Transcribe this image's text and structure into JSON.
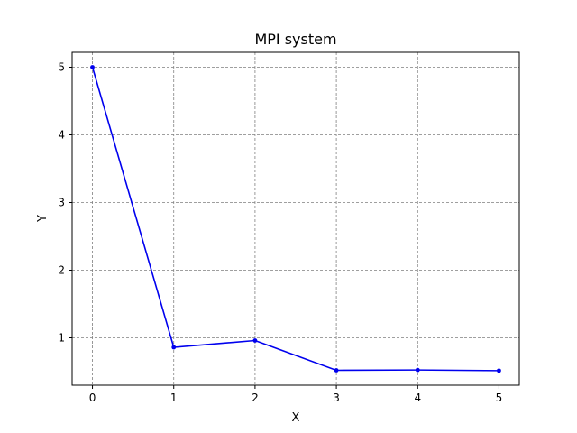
{
  "chart_data": {
    "type": "line",
    "title": "MPI system",
    "xlabel": "X",
    "ylabel": "Y",
    "x": [
      0,
      1,
      2,
      3,
      4,
      5
    ],
    "series": [
      {
        "values": [
          5.0,
          0.86,
          0.96,
          0.52,
          0.525,
          0.515
        ],
        "color": "#0000ee",
        "marker": "circle"
      }
    ],
    "xlim": [
      -0.25,
      5.25
    ],
    "ylim": [
      0.3,
      5.22
    ],
    "xticks": [
      0,
      1,
      2,
      3,
      4,
      5
    ],
    "yticks": [
      1,
      2,
      3,
      4,
      5
    ],
    "grid": true,
    "legend": "none"
  }
}
